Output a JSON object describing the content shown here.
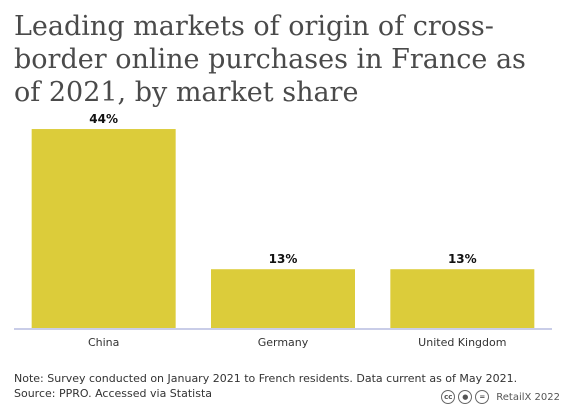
{
  "header": {
    "title": "Leading markets of origin of cross-border online purchases in France as of 2021, by market share"
  },
  "chart_data": {
    "type": "bar",
    "categories": [
      "China",
      "Germany",
      "United Kingdom"
    ],
    "values": [
      44,
      13,
      13
    ],
    "value_labels": [
      "44%",
      "13%",
      "13%"
    ],
    "ylim": [
      0,
      46
    ],
    "bar_color": "#dccc3a",
    "axis_color": "#c9cde8",
    "grid": false,
    "legend": "none"
  },
  "footer": {
    "note": "Note: Survey conducted on January 2021 to French residents. Data current as of May 2021.",
    "source": "Source: PPRO. Accessed via Statista",
    "license_icons": [
      "cc-icon",
      "by-icon",
      "equals-icon"
    ],
    "credit": "RetailX 2022"
  }
}
